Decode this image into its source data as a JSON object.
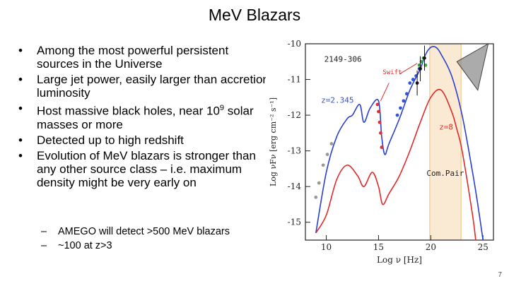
{
  "slide": {
    "title": "MeV Blazars",
    "page_number": "7",
    "bullets": [
      {
        "text": "Among the most powerful persistent sources in the Universe"
      },
      {
        "text": "Large jet power, easily larger than accretion luminosity"
      },
      {
        "text_pre": "Host massive black holes, near 10",
        "sup": "9",
        "text_post": " solar masses or more"
      },
      {
        "text": "Detected up to high redshift"
      },
      {
        "text": "Evolution of MeV blazars is stronger than any other source class – i.e. maximum density might be very early on"
      }
    ],
    "sub_bullets": [
      {
        "marker": "–",
        "text": "AMEGO will detect >500 MeV blazars"
      },
      {
        "marker": "–",
        "text": "~100 at z>3"
      }
    ],
    "bullet_marker": "•"
  },
  "chart_data": {
    "type": "line",
    "source_label": "2149-306",
    "xlabel": "Log ν [Hz]",
    "ylabel": "Log νFν [erg cm⁻² s⁻¹]",
    "xlim": [
      8,
      26
    ],
    "ylim": [
      -15.5,
      -10
    ],
    "xticks": [
      10,
      15,
      20,
      25
    ],
    "yticks": [
      -10,
      -11,
      -12,
      -13,
      -14,
      -15
    ],
    "annotations": [
      {
        "text": "z=2.345",
        "color": "#3a50c8"
      },
      {
        "text": "Swift",
        "color": "#e03030"
      },
      {
        "text": "z=8",
        "color": "#e03030"
      },
      {
        "text": "Com.Pair",
        "color": "#222222"
      }
    ],
    "comptel_band": {
      "x": [
        19.9,
        22.9
      ],
      "color": "#f0c080"
    },
    "series": [
      {
        "name": "z=2.345 model",
        "color": "#2a3fd0",
        "x": [
          9,
          10,
          11,
          12,
          12.5,
          13.2,
          13.6,
          14.2,
          15,
          15.3,
          15.6,
          16,
          17,
          18,
          19,
          19.5,
          20,
          20.5,
          21,
          22,
          23,
          24,
          24.5,
          25
        ],
        "y": [
          -15.3,
          -13.6,
          -12.6,
          -12.1,
          -12.0,
          -11.7,
          -12.2,
          -11.8,
          -11.6,
          -12.6,
          -13.1,
          -12.8,
          -12.1,
          -11.3,
          -10.7,
          -10.3,
          -10.1,
          -10.1,
          -10.3,
          -10.9,
          -12.0,
          -13.6,
          -14.5,
          -15.5
        ]
      },
      {
        "name": "z=8 model",
        "color": "#e02a2a",
        "x": [
          9,
          10,
          11,
          12,
          13,
          13.6,
          14.4,
          15,
          15.4,
          16,
          17,
          18,
          19,
          20,
          21,
          22,
          22.5,
          23,
          24,
          24.3
        ],
        "y": [
          -15.3,
          -14.8,
          -13.8,
          -13.4,
          -13.7,
          -14.0,
          -13.6,
          -14.0,
          -14.5,
          -14.2,
          -13.7,
          -13.0,
          -12.2,
          -11.5,
          -11.3,
          -11.9,
          -12.4,
          -13.0,
          -14.8,
          -15.5
        ]
      },
      {
        "name": "Fermi limit",
        "color": "#444444",
        "x": [
          22.5,
          24.5,
          25.5
        ],
        "y": [
          -10.5,
          -11.3,
          -10.0
        ]
      }
    ],
    "points": [
      {
        "name": "gray data",
        "color": "#999999",
        "x": [
          9.0,
          9.3,
          9.7,
          10.1,
          10.5
        ],
        "y": [
          -14.3,
          -13.9,
          -13.4,
          -13.1,
          -12.8
        ]
      },
      {
        "name": "optical data",
        "color": "#dd3333",
        "x": [
          14.9,
          15.0,
          15.1,
          15.2,
          15.3
        ],
        "y": [
          -11.7,
          -11.9,
          -12.2,
          -12.5,
          -12.9
        ]
      },
      {
        "name": "swift data",
        "color": "#3355dd",
        "x": [
          16.8,
          17.1,
          17.4,
          17.7,
          18.0,
          18.3,
          18.6,
          18.9
        ],
        "y": [
          -12.0,
          -11.8,
          -11.6,
          -11.4,
          -11.1,
          -11.0,
          -10.9,
          -10.7
        ]
      },
      {
        "name": "bat data",
        "color": "#33aa33",
        "x": [
          18.9,
          19.1,
          19.3,
          19.5
        ],
        "y": [
          -10.6,
          -10.5,
          -10.4,
          -10.6
        ]
      },
      {
        "name": "black data",
        "color": "#111111",
        "x": [
          18.7,
          19.0,
          19.4
        ],
        "y": [
          -11.1,
          -10.7,
          -10.4
        ]
      }
    ]
  }
}
